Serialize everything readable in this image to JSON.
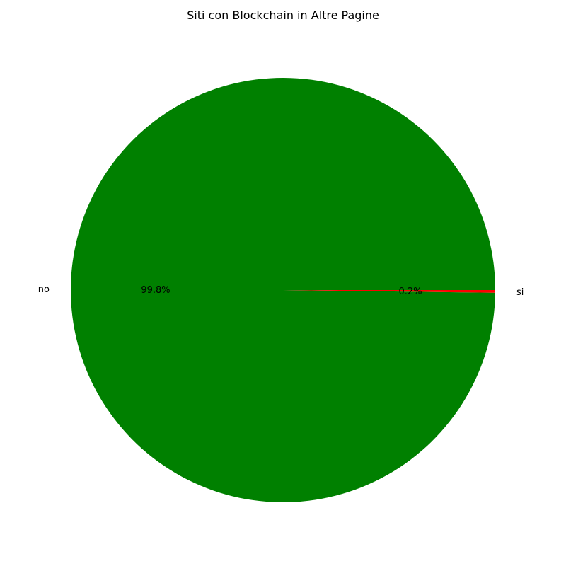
{
  "chart_data": {
    "type": "pie",
    "title": "Siti con Blockchain in Altre Pagine",
    "slices": [
      {
        "label": "no",
        "value": 99.8,
        "pct_label": "99.8%",
        "color": "#008000"
      },
      {
        "label": "si",
        "value": 0.2,
        "pct_label": "0.2%",
        "color": "#ff0000"
      }
    ],
    "start_angle_deg": 0,
    "direction": "counterclockwise",
    "legend": "none"
  }
}
